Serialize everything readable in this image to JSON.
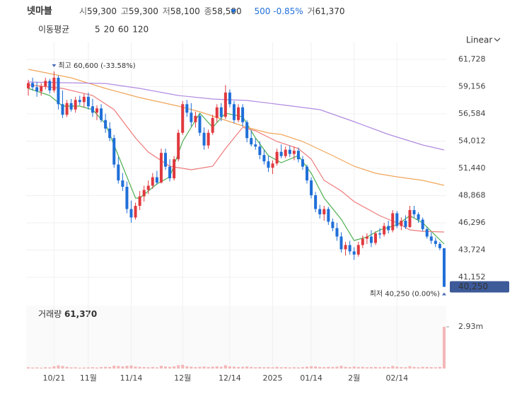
{
  "chart_data": {
    "type": "candlestick",
    "header": {
      "name": "넷마블",
      "open_label": "시",
      "open": "59,300",
      "high_label": "고",
      "high": "59,300",
      "low_label": "저",
      "low": "58,100",
      "close_label": "종",
      "close": "58,500",
      "change": "500",
      "change_pct": "-0.85%",
      "volume_label": "거",
      "volume": "61,370"
    },
    "ma_label": "이동평균",
    "scale_mode": "Linear",
    "up_color": "#e0393e",
    "down_color": "#1f6fd8",
    "volume_color": "#f4b6b8",
    "high_annotation": "최고 60,600 (-33.58%)",
    "low_annotation": "최저 40,250 (0.00%)",
    "last_price": {
      "value": 40250,
      "label": "40,250"
    },
    "volume_title": "거래량",
    "volume_title_value": "61,370",
    "candles": [
      [
        59000,
        59800,
        58300,
        59500
      ],
      [
        59500,
        60000,
        58800,
        59100
      ],
      [
        59100,
        59600,
        58200,
        58700
      ],
      [
        58700,
        59500,
        58300,
        59200
      ],
      [
        59200,
        60000,
        58900,
        59700
      ],
      [
        59700,
        59900,
        58500,
        58800
      ],
      [
        58800,
        60600,
        58600,
        60000
      ],
      [
        60000,
        60200,
        57000,
        57500
      ],
      [
        57500,
        58800,
        56200,
        56500
      ],
      [
        56500,
        57900,
        56300,
        57600
      ],
      [
        57600,
        58000,
        56800,
        57000
      ],
      [
        57000,
        58200,
        56700,
        57900
      ],
      [
        57900,
        58300,
        57400,
        57700
      ],
      [
        57700,
        58500,
        57200,
        58200
      ],
      [
        58200,
        58600,
        57000,
        57300
      ],
      [
        57300,
        58000,
        56300,
        56700
      ],
      [
        56700,
        57400,
        56000,
        57100
      ],
      [
        57100,
        57500,
        55800,
        56000
      ],
      [
        56000,
        56600,
        54800,
        55200
      ],
      [
        55200,
        55800,
        54000,
        54300
      ],
      [
        54300,
        54600,
        51500,
        51800
      ],
      [
        51800,
        52500,
        50000,
        50300
      ],
      [
        50300,
        51000,
        49300,
        49700
      ],
      [
        49700,
        50200,
        47200,
        47600
      ],
      [
        47600,
        48400,
        46300,
        46800
      ],
      [
        46800,
        48200,
        46600,
        47900
      ],
      [
        47900,
        49300,
        47500,
        48800
      ],
      [
        48800,
        49800,
        48300,
        49400
      ],
      [
        49400,
        50300,
        49000,
        49800
      ],
      [
        49800,
        51000,
        49500,
        50600
      ],
      [
        50600,
        51200,
        49900,
        50100
      ],
      [
        50100,
        53300,
        50000,
        52900
      ],
      [
        52900,
        53300,
        51300,
        51600
      ],
      [
        51600,
        52300,
        50200,
        50500
      ],
      [
        50500,
        52600,
        50300,
        52300
      ],
      [
        52300,
        55100,
        52100,
        54800
      ],
      [
        54800,
        57800,
        54600,
        57500
      ],
      [
        57500,
        57900,
        56300,
        56700
      ],
      [
        56700,
        57600,
        55400,
        55800
      ],
      [
        55800,
        56800,
        55300,
        56400
      ],
      [
        56400,
        56600,
        54500,
        54800
      ],
      [
        54800,
        55300,
        53200,
        53600
      ],
      [
        53600,
        55100,
        53300,
        54800
      ],
      [
        54800,
        56500,
        54600,
        56200
      ],
      [
        56200,
        57500,
        55800,
        57200
      ],
      [
        57200,
        57600,
        55900,
        56300
      ],
      [
        56300,
        59300,
        56100,
        58600
      ],
      [
        58600,
        58900,
        57200,
        57500
      ],
      [
        57500,
        57800,
        55700,
        56000
      ],
      [
        56000,
        57500,
        55800,
        57200
      ],
      [
        57200,
        57500,
        55400,
        55800
      ],
      [
        55800,
        56000,
        53900,
        54300
      ],
      [
        54300,
        55000,
        53500,
        53700
      ],
      [
        53700,
        54300,
        53200,
        53500
      ],
      [
        53500,
        54000,
        52300,
        52700
      ],
      [
        52700,
        53200,
        51800,
        52100
      ],
      [
        52100,
        52600,
        51100,
        51500
      ],
      [
        51500,
        52200,
        50900,
        51900
      ],
      [
        51900,
        53300,
        51700,
        53000
      ],
      [
        53000,
        53700,
        52400,
        52600
      ],
      [
        52600,
        53500,
        52400,
        53200
      ],
      [
        53200,
        53600,
        52500,
        52800
      ],
      [
        52800,
        53500,
        52200,
        53100
      ],
      [
        53100,
        53400,
        52000,
        52300
      ],
      [
        52300,
        52600,
        51300,
        51600
      ],
      [
        51600,
        51800,
        50000,
        50300
      ],
      [
        50300,
        50600,
        48600,
        48900
      ],
      [
        48900,
        49200,
        47300,
        47600
      ],
      [
        47600,
        48000,
        46700,
        47100
      ],
      [
        47100,
        47900,
        46500,
        47600
      ],
      [
        47600,
        47800,
        46100,
        46400
      ],
      [
        46400,
        46700,
        45500,
        45800
      ],
      [
        45800,
        46300,
        44600,
        45000
      ],
      [
        45000,
        45400,
        43500,
        43800
      ],
      [
        43800,
        44500,
        43200,
        44200
      ],
      [
        44200,
        44600,
        43300,
        43600
      ],
      [
        43600,
        44000,
        42800,
        43300
      ],
      [
        43300,
        44500,
        43100,
        44200
      ],
      [
        44200,
        45100,
        43900,
        44800
      ],
      [
        44800,
        45300,
        44300,
        45000
      ],
      [
        45000,
        45600,
        44000,
        44400
      ],
      [
        44400,
        45500,
        44200,
        45300
      ],
      [
        45300,
        45800,
        44800,
        45200
      ],
      [
        45200,
        46300,
        45000,
        46000
      ],
      [
        46000,
        46500,
        45300,
        45600
      ],
      [
        45600,
        47500,
        45400,
        47200
      ],
      [
        47200,
        47400,
        45800,
        46000
      ],
      [
        46000,
        46800,
        45600,
        46500
      ],
      [
        46500,
        47000,
        45700,
        45900
      ],
      [
        45900,
        47900,
        45800,
        47500
      ],
      [
        47500,
        47900,
        46800,
        47100
      ],
      [
        47100,
        47300,
        46300,
        46600
      ],
      [
        46600,
        46800,
        45500,
        45700
      ],
      [
        45700,
        45900,
        44800,
        45000
      ],
      [
        45000,
        45400,
        44300,
        44600
      ],
      [
        44600,
        44900,
        44000,
        44300
      ],
      [
        44300,
        44500,
        43700,
        43900
      ],
      [
        43900,
        43900,
        40250,
        40250
      ]
    ],
    "volumes": [
      90000,
      70000,
      80000,
      60000,
      90000,
      80000,
      160000,
      220000,
      180000,
      120000,
      80000,
      90000,
      60000,
      70000,
      80000,
      90000,
      70000,
      100000,
      120000,
      110000,
      200000,
      180000,
      150000,
      190000,
      210000,
      140000,
      120000,
      100000,
      90000,
      110000,
      80000,
      190000,
      140000,
      120000,
      150000,
      230000,
      260000,
      160000,
      130000,
      100000,
      120000,
      140000,
      110000,
      130000,
      150000,
      120000,
      230000,
      150000,
      130000,
      110000,
      120000,
      140000,
      110000,
      90000,
      100000,
      90000,
      100000,
      90000,
      120000,
      90000,
      100000,
      80000,
      90000,
      80000,
      100000,
      130000,
      160000,
      150000,
      110000,
      100000,
      120000,
      110000,
      130000,
      190000,
      120000,
      100000,
      140000,
      110000,
      120000,
      90000,
      100000,
      110000,
      90000,
      120000,
      100000,
      180000,
      130000,
      100000,
      90000,
      170000,
      110000,
      90000,
      120000,
      110000,
      100000,
      90000,
      110000,
      2930000
    ],
    "xticks": [
      {
        "value": 6,
        "label": "10/21"
      },
      {
        "value": 14,
        "label": "11월"
      },
      {
        "value": 24,
        "label": "11/14"
      },
      {
        "value": 36,
        "label": "12월"
      },
      {
        "value": 47,
        "label": "12/14"
      },
      {
        "value": 57,
        "label": "2025"
      },
      {
        "value": 66,
        "label": "01/14"
      },
      {
        "value": 76,
        "label": "2월"
      },
      {
        "value": 86,
        "label": "02/14"
      }
    ],
    "xlim": [
      -0.5,
      97.5
    ],
    "ylim": [
      38950,
      63330
    ],
    "yticks": [
      {
        "value": 61728,
        "label": "61,728"
      },
      {
        "value": 59156,
        "label": "59,156"
      },
      {
        "value": 56584,
        "label": "56,584"
      },
      {
        "value": 54012,
        "label": "54,012"
      },
      {
        "value": 51440,
        "label": "51,440"
      },
      {
        "value": 48868,
        "label": "48,868"
      },
      {
        "value": 46296,
        "label": "46,296"
      },
      {
        "value": 43724,
        "label": "43,724"
      },
      {
        "value": 41152,
        "label": "41,152"
      }
    ],
    "y2lim": [
      0,
      4420000
    ],
    "y2ticks": [
      {
        "value": 2930000,
        "label": "2.93m"
      }
    ],
    "grid": true,
    "series": [
      {
        "name": "5",
        "color": "#4caf50",
        "x": [
          0,
          5,
          8,
          12,
          15,
          18,
          21,
          25,
          26,
          30,
          33,
          36,
          40,
          43,
          46,
          50,
          53,
          56,
          59,
          63,
          66,
          69,
          73,
          76,
          79,
          82,
          86,
          89,
          92,
          97
        ],
        "values": [
          58989,
          58321,
          57319,
          57319,
          56985,
          55649,
          52644,
          48636,
          48636,
          49972,
          50640,
          53980,
          56652,
          55316,
          56652,
          56318,
          54314,
          52644,
          51976,
          52644,
          50974,
          48636,
          46632,
          44628,
          44962,
          45630,
          46097,
          46966,
          46297,
          44293
        ]
      },
      {
        "name": "20",
        "color": "#ef7a7a",
        "x": [
          0,
          8,
          15,
          20,
          25,
          28,
          33,
          38,
          43,
          46,
          50,
          53,
          58,
          63,
          66,
          69,
          73,
          76,
          79,
          82,
          86,
          89,
          92,
          97
        ],
        "values": [
          59323,
          58989,
          58321,
          56985,
          54313,
          52977,
          51641,
          51307,
          51641,
          53311,
          55315,
          54981,
          53980,
          53311,
          52310,
          50305,
          49303,
          48301,
          47633,
          46965,
          46296,
          45628,
          45495,
          45428
        ]
      },
      {
        "name": "60",
        "color": "#f0a65a",
        "x": [
          0,
          10,
          18,
          26,
          35,
          40,
          46,
          51,
          56,
          59,
          64,
          71,
          76,
          81,
          86,
          92,
          97
        ],
        "values": [
          60793,
          59991,
          58989,
          58121,
          57319,
          56785,
          55983,
          55315,
          54781,
          54647,
          53980,
          52644,
          51641,
          50973,
          50639,
          50305,
          49838
        ]
      },
      {
        "name": "120",
        "color": "#b18be0",
        "x": [
          0,
          18,
          26,
          35,
          43,
          51,
          59,
          68,
          76,
          84,
          92,
          97
        ],
        "values": [
          59590,
          59457,
          58989,
          58321,
          57987,
          57854,
          57453,
          56986,
          55850,
          54648,
          53646,
          53178
        ]
      }
    ]
  }
}
